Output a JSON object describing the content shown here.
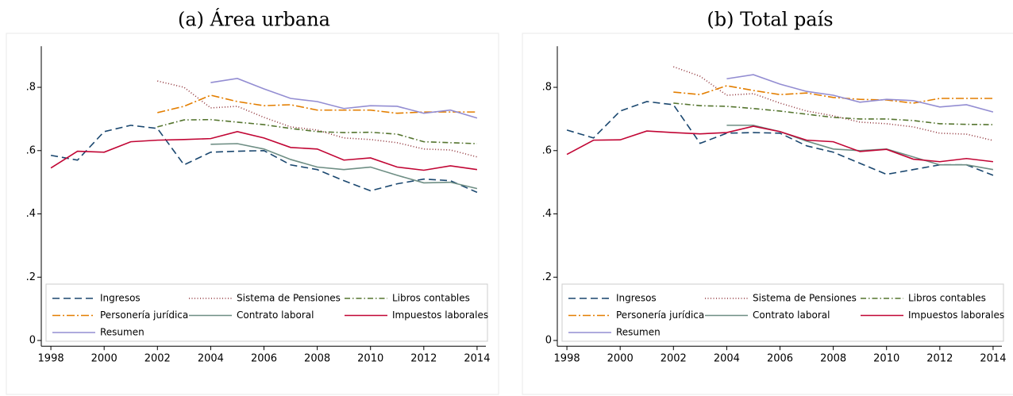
{
  "chart_data": [
    {
      "type": "line",
      "title": "(a) Área urbana",
      "x": [
        1998,
        1999,
        2000,
        2001,
        2002,
        2003,
        2004,
        2005,
        2006,
        2007,
        2008,
        2009,
        2010,
        2011,
        2012,
        2013,
        2014
      ],
      "xlim": [
        1997.64,
        2014.33
      ],
      "xticks": [
        1998,
        2000,
        2002,
        2004,
        2006,
        2008,
        2010,
        2012,
        2014
      ],
      "ylim": [
        -0.018,
        0.93
      ],
      "yticks": [
        0,
        {
          "value": 0.2,
          "label": ".2"
        },
        {
          "value": 0.4,
          "label": ".4"
        },
        {
          "value": 0.6,
          "label": ".6"
        },
        {
          "value": 0.8,
          "label": ".8"
        }
      ],
      "series": [
        {
          "name": "Ingresos",
          "color": "#1a476f",
          "style": "dash",
          "values": [
            0.585,
            0.57,
            0.66,
            0.68,
            0.67,
            0.555,
            0.595,
            0.598,
            0.6,
            0.555,
            0.54,
            0.505,
            0.473,
            0.495,
            0.51,
            0.505,
            0.468
          ]
        },
        {
          "name": "Sistema de Pensiones",
          "color": "#90353b",
          "style": "dot",
          "values": [
            null,
            null,
            null,
            null,
            0.82,
            0.8,
            0.735,
            0.74,
            0.705,
            0.675,
            0.665,
            0.64,
            0.635,
            0.625,
            0.605,
            0.602,
            0.58
          ]
        },
        {
          "name": "Libros contables",
          "color": "#55752f",
          "style": "dashdot",
          "values": [
            null,
            null,
            null,
            null,
            0.675,
            0.697,
            0.698,
            0.69,
            0.682,
            0.67,
            0.66,
            0.657,
            0.658,
            0.652,
            0.628,
            0.625,
            0.622
          ]
        },
        {
          "name": "Personería jurídica",
          "color": "#e37e00",
          "style": "longdashdot",
          "values": [
            null,
            null,
            null,
            null,
            0.72,
            0.74,
            0.775,
            0.755,
            0.742,
            0.745,
            0.728,
            0.728,
            0.728,
            0.718,
            0.722,
            0.722,
            0.722
          ]
        },
        {
          "name": "Contrato laboral",
          "color": "#6e8e84",
          "style": "solid",
          "values": [
            null,
            null,
            null,
            null,
            null,
            null,
            0.62,
            0.622,
            0.605,
            0.572,
            0.548,
            0.54,
            0.548,
            0.522,
            0.498,
            0.5,
            0.48
          ]
        },
        {
          "name": "Impuestos laborales",
          "color": "#c10534",
          "style": "solid",
          "values": [
            0.545,
            0.598,
            0.595,
            0.628,
            0.633,
            0.635,
            0.638,
            0.66,
            0.64,
            0.61,
            0.605,
            0.57,
            0.577,
            0.548,
            0.538,
            0.552,
            0.54
          ]
        },
        {
          "name": "Resumen",
          "color": "#938dd2",
          "style": "solid",
          "values": [
            null,
            null,
            null,
            null,
            null,
            null,
            0.815,
            0.828,
            0.795,
            0.765,
            0.755,
            0.733,
            0.742,
            0.74,
            0.718,
            0.728,
            0.703
          ]
        }
      ]
    },
    {
      "type": "line",
      "title": "(b) Total país",
      "x": [
        1998,
        1999,
        2000,
        2001,
        2002,
        2003,
        2004,
        2005,
        2006,
        2007,
        2008,
        2009,
        2010,
        2011,
        2012,
        2013,
        2014
      ],
      "xlim": [
        1997.64,
        2014.33
      ],
      "xticks": [
        1998,
        2000,
        2002,
        2004,
        2006,
        2008,
        2010,
        2012,
        2014
      ],
      "ylim": [
        -0.018,
        0.93
      ],
      "yticks": [
        0,
        {
          "value": 0.2,
          "label": ".2"
        },
        {
          "value": 0.4,
          "label": ".4"
        },
        {
          "value": 0.6,
          "label": ".6"
        },
        {
          "value": 0.8,
          "label": ".8"
        }
      ],
      "series": [
        {
          "name": "Ingresos",
          "color": "#1a476f",
          "style": "dash",
          "values": [
            0.665,
            0.64,
            0.725,
            0.755,
            0.745,
            0.623,
            0.655,
            0.657,
            0.655,
            0.615,
            0.595,
            0.56,
            0.525,
            0.54,
            0.555,
            0.555,
            0.522
          ]
        },
        {
          "name": "Sistema de Pensiones",
          "color": "#90353b",
          "style": "dot",
          "values": [
            null,
            null,
            null,
            null,
            0.865,
            0.835,
            0.775,
            0.78,
            0.75,
            0.725,
            0.71,
            0.69,
            0.685,
            0.675,
            0.655,
            0.652,
            0.632
          ]
        },
        {
          "name": "Libros contables",
          "color": "#55752f",
          "style": "dashdot",
          "values": [
            null,
            null,
            null,
            null,
            0.75,
            0.742,
            0.74,
            0.733,
            0.725,
            0.715,
            0.705,
            0.7,
            0.7,
            0.695,
            0.685,
            0.683,
            0.682
          ]
        },
        {
          "name": "Personería jurídica",
          "color": "#e37e00",
          "style": "longdashdot",
          "values": [
            null,
            null,
            null,
            null,
            0.785,
            0.777,
            0.805,
            0.79,
            0.777,
            0.782,
            0.768,
            0.762,
            0.76,
            0.75,
            0.765,
            0.765,
            0.765
          ]
        },
        {
          "name": "Contrato laboral",
          "color": "#6e8e84",
          "style": "solid",
          "values": [
            null,
            null,
            null,
            null,
            null,
            null,
            0.68,
            0.68,
            0.66,
            0.63,
            0.605,
            0.6,
            0.605,
            0.58,
            0.555,
            0.555,
            0.54
          ]
        },
        {
          "name": "Impuestos laborales",
          "color": "#c10534",
          "style": "solid",
          "values": [
            0.588,
            0.633,
            0.634,
            0.662,
            0.657,
            0.653,
            0.657,
            0.677,
            0.66,
            0.633,
            0.628,
            0.597,
            0.604,
            0.573,
            0.565,
            0.575,
            0.565
          ]
        },
        {
          "name": "Resumen",
          "color": "#938dd2",
          "style": "solid",
          "values": [
            null,
            null,
            null,
            null,
            null,
            null,
            0.827,
            0.84,
            0.81,
            0.787,
            0.775,
            0.753,
            0.762,
            0.758,
            0.738,
            0.745,
            0.722
          ]
        }
      ]
    }
  ]
}
